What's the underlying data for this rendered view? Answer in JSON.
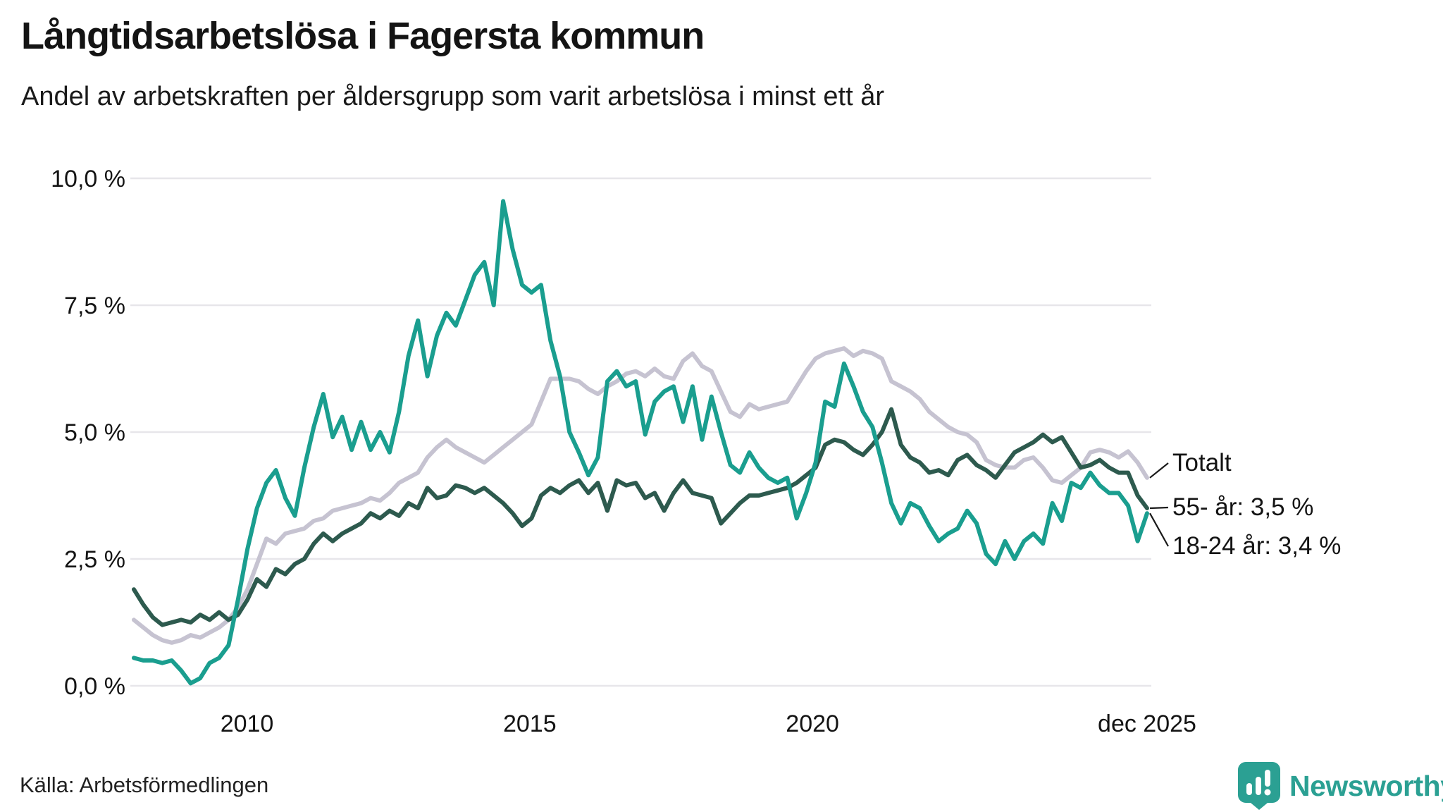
{
  "header": {
    "title": "Långtidsarbetslösa i Fagersta kommun",
    "subtitle": "Andel av arbetskraften per åldersgrupp som varit arbetslösa i minst ett år"
  },
  "footer": {
    "source": "Källa: Arbetsförmedlingen",
    "brand": "Newsworthy"
  },
  "colors": {
    "teal_line": "#1a9e8f",
    "dark_green_line": "#2d5a4e",
    "gray_line": "#c6c3d1",
    "gridline": "#e7e6ea",
    "text": "#141414",
    "leader_line": "#1a1a1a",
    "logo_teal": "#2ba093"
  },
  "chart_data": {
    "type": "line",
    "title": "Långtidsarbetslösa i Fagersta kommun",
    "subtitle": "Andel av arbetskraften per åldersgrupp som varit arbetslösa i minst ett år",
    "xlabel": "",
    "ylabel": "",
    "grid": "horizontal only",
    "legend_position": "right end-of-line labels",
    "ylim": [
      0,
      10
    ],
    "x_range": {
      "start_year": 2008.0,
      "end_year": 2025.917
    },
    "x_ticks": [
      {
        "label": "2010",
        "year": 2010
      },
      {
        "label": "2015",
        "year": 2015
      },
      {
        "label": "2020",
        "year": 2020
      },
      {
        "label": "dec 2025",
        "year": 2025.917
      }
    ],
    "y_ticks": [
      {
        "label": "0,0 %",
        "value": 0
      },
      {
        "label": "2,5 %",
        "value": 2.5
      },
      {
        "label": "5,0 %",
        "value": 5
      },
      {
        "label": "7,5 %",
        "value": 7.5
      },
      {
        "label": "10,0 %",
        "value": 10
      }
    ],
    "sampling": "values every 2 months, Jan 2008 to Dec 2025, percent of workforce",
    "series": [
      {
        "name": "Totalt",
        "end_label": "Totalt",
        "color": "#c6c3d1",
        "values": [
          1.3,
          1.15,
          1.0,
          0.9,
          0.85,
          0.9,
          1.0,
          0.95,
          1.05,
          1.15,
          1.3,
          1.55,
          1.9,
          2.4,
          2.9,
          2.8,
          3.0,
          3.05,
          3.1,
          3.25,
          3.3,
          3.45,
          3.5,
          3.55,
          3.6,
          3.7,
          3.65,
          3.8,
          4.0,
          4.1,
          4.2,
          4.5,
          4.7,
          4.85,
          4.7,
          4.6,
          4.5,
          4.4,
          4.55,
          4.7,
          4.85,
          5.0,
          5.15,
          5.6,
          6.05,
          6.05,
          6.05,
          6.0,
          5.85,
          5.75,
          5.9,
          6.0,
          6.15,
          6.2,
          6.1,
          6.25,
          6.1,
          6.05,
          6.4,
          6.55,
          6.3,
          6.2,
          5.8,
          5.4,
          5.3,
          5.55,
          5.45,
          5.5,
          5.55,
          5.6,
          5.9,
          6.2,
          6.45,
          6.55,
          6.6,
          6.65,
          6.5,
          6.6,
          6.55,
          6.45,
          6.0,
          5.9,
          5.8,
          5.65,
          5.4,
          5.25,
          5.1,
          5.0,
          4.95,
          4.8,
          4.45,
          4.35,
          4.3,
          4.3,
          4.45,
          4.5,
          4.3,
          4.05,
          4.0,
          4.15,
          4.3,
          4.6,
          4.65,
          4.6,
          4.5,
          4.62,
          4.4,
          4.1
        ]
      },
      {
        "name": "55- år",
        "end_label": "55- år: 3,5 %",
        "final_value": 3.5,
        "color": "#2d5a4e",
        "values": [
          1.9,
          1.6,
          1.35,
          1.2,
          1.25,
          1.3,
          1.25,
          1.4,
          1.3,
          1.45,
          1.3,
          1.4,
          1.7,
          2.1,
          1.95,
          2.3,
          2.2,
          2.4,
          2.5,
          2.8,
          3.0,
          2.85,
          3.0,
          3.1,
          3.2,
          3.4,
          3.3,
          3.45,
          3.35,
          3.6,
          3.5,
          3.9,
          3.7,
          3.75,
          3.95,
          3.9,
          3.8,
          3.9,
          3.75,
          3.6,
          3.4,
          3.15,
          3.3,
          3.75,
          3.9,
          3.8,
          3.95,
          4.05,
          3.8,
          4.0,
          3.45,
          4.05,
          3.95,
          4.0,
          3.7,
          3.8,
          3.45,
          3.8,
          4.05,
          3.8,
          3.75,
          3.7,
          3.2,
          3.4,
          3.6,
          3.75,
          3.75,
          3.8,
          3.85,
          3.9,
          4.0,
          4.15,
          4.3,
          4.75,
          4.85,
          4.8,
          4.65,
          4.55,
          4.75,
          5.0,
          5.45,
          4.75,
          4.5,
          4.4,
          4.2,
          4.25,
          4.15,
          4.45,
          4.55,
          4.35,
          4.25,
          4.1,
          4.35,
          4.6,
          4.7,
          4.8,
          4.95,
          4.8,
          4.9,
          4.6,
          4.3,
          4.35,
          4.45,
          4.3,
          4.2,
          4.2,
          3.75,
          3.5
        ]
      },
      {
        "name": "18-24 år",
        "end_label": "18-24 år: 3,4 %",
        "final_value": 3.4,
        "color": "#1a9e8f",
        "values": [
          0.55,
          0.5,
          0.5,
          0.45,
          0.5,
          0.3,
          0.05,
          0.15,
          0.45,
          0.55,
          0.8,
          1.7,
          2.7,
          3.5,
          4.0,
          4.25,
          3.7,
          3.35,
          4.3,
          5.1,
          5.75,
          4.9,
          5.3,
          4.65,
          5.2,
          4.65,
          5.0,
          4.6,
          5.4,
          6.5,
          7.2,
          6.1,
          6.9,
          7.35,
          7.1,
          7.6,
          8.1,
          8.35,
          7.5,
          9.55,
          8.6,
          7.9,
          7.75,
          7.9,
          6.8,
          6.1,
          5.0,
          4.6,
          4.15,
          4.5,
          6.0,
          6.2,
          5.9,
          6.0,
          4.95,
          5.6,
          5.8,
          5.9,
          5.2,
          5.9,
          4.85,
          5.7,
          5.0,
          4.35,
          4.2,
          4.6,
          4.3,
          4.1,
          4.0,
          4.1,
          3.3,
          3.8,
          4.4,
          5.6,
          5.5,
          6.35,
          5.9,
          5.4,
          5.1,
          4.4,
          3.6,
          3.2,
          3.6,
          3.5,
          3.15,
          2.85,
          3.0,
          3.1,
          3.45,
          3.2,
          2.6,
          2.4,
          2.85,
          2.5,
          2.85,
          3.0,
          2.8,
          3.6,
          3.25,
          4.0,
          3.9,
          4.2,
          3.95,
          3.8,
          3.8,
          3.55,
          2.85,
          3.4
        ]
      }
    ]
  }
}
